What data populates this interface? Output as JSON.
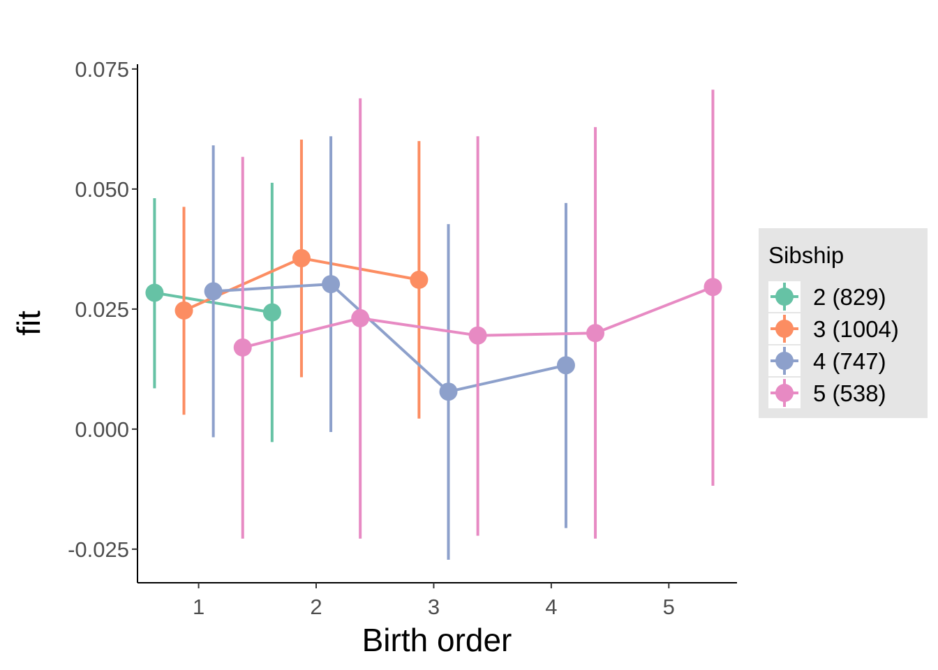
{
  "chart_data": {
    "type": "line",
    "xlabel": "Birth order",
    "ylabel": "fit",
    "xlim": [
      0.48,
      5.58
    ],
    "ylim": [
      -0.032,
      0.076
    ],
    "x_ticks": [
      "1",
      "2",
      "3",
      "4",
      "5"
    ],
    "y_ticks": [
      "-0.025",
      "0.000",
      "0.025",
      "0.050",
      "0.075"
    ],
    "grid": false,
    "legend": {
      "title": "Sibship",
      "position": "right"
    },
    "dodge_offset": 0.375,
    "series": [
      {
        "name": "2 (829)",
        "color": "#66C2A5",
        "points": [
          {
            "x": 1,
            "y": 0.0284,
            "lower": 0.0085,
            "upper": 0.0481
          },
          {
            "x": 2,
            "y": 0.0243,
            "lower": -0.0027,
            "upper": 0.0513
          }
        ]
      },
      {
        "name": "3 (1004)",
        "color": "#FC8D62",
        "points": [
          {
            "x": 1,
            "y": 0.0247,
            "lower": 0.003,
            "upper": 0.0463
          },
          {
            "x": 2,
            "y": 0.0356,
            "lower": 0.0108,
            "upper": 0.0603
          },
          {
            "x": 3,
            "y": 0.0311,
            "lower": 0.0022,
            "upper": 0.06
          }
        ]
      },
      {
        "name": "4 (747)",
        "color": "#8DA0CB",
        "points": [
          {
            "x": 1,
            "y": 0.0287,
            "lower": -0.0017,
            "upper": 0.0591
          },
          {
            "x": 2,
            "y": 0.0302,
            "lower": -0.0006,
            "upper": 0.061
          },
          {
            "x": 3,
            "y": 0.0078,
            "lower": -0.0272,
            "upper": 0.0427
          },
          {
            "x": 4,
            "y": 0.0133,
            "lower": -0.0206,
            "upper": 0.0471
          }
        ]
      },
      {
        "name": "5 (538)",
        "color": "#E78AC3",
        "points": [
          {
            "x": 1,
            "y": 0.017,
            "lower": -0.0228,
            "upper": 0.0567
          },
          {
            "x": 2,
            "y": 0.0231,
            "lower": -0.0228,
            "upper": 0.0689
          },
          {
            "x": 3,
            "y": 0.0195,
            "lower": -0.0222,
            "upper": 0.061
          },
          {
            "x": 4,
            "y": 0.02,
            "lower": -0.0228,
            "upper": 0.0629
          },
          {
            "x": 5,
            "y": 0.0296,
            "lower": -0.0118,
            "upper": 0.0707
          }
        ]
      }
    ]
  }
}
